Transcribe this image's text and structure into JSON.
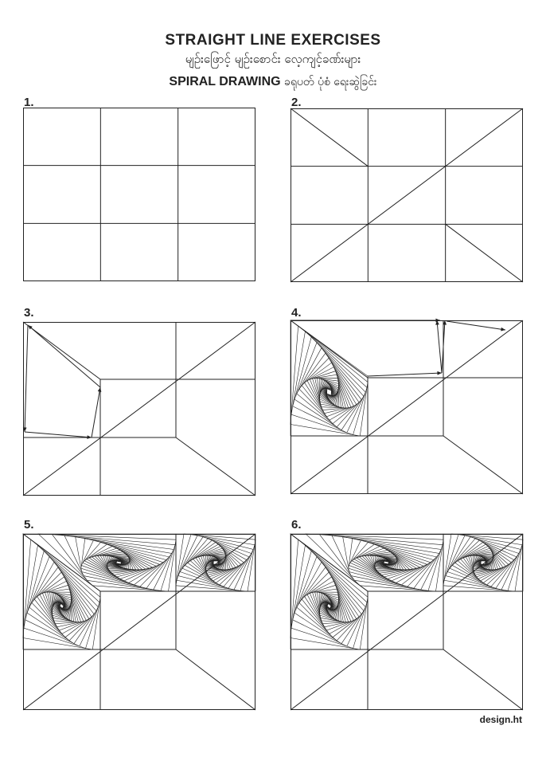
{
  "header": {
    "title": "STRAIGHT LINE EXERCISES",
    "subtitle_myanmar": "မျဉ်းဖြောင့် မျဉ်းစောင်း လေ့ကျင့်ခဏ်းများ",
    "spiral_label": "SPIRAL DRAWING",
    "spiral_label_myanmar": "ခရုပတ် ပုံစံ ရေးဆွဲခြင်း"
  },
  "panels": [
    {
      "number": "1."
    },
    {
      "number": "2."
    },
    {
      "number": "3."
    },
    {
      "number": "4."
    },
    {
      "number": "5."
    },
    {
      "number": "6."
    }
  ],
  "footer": {
    "credit": "design.ht"
  },
  "colors": {
    "line": "#222222",
    "background": "#ffffff"
  }
}
